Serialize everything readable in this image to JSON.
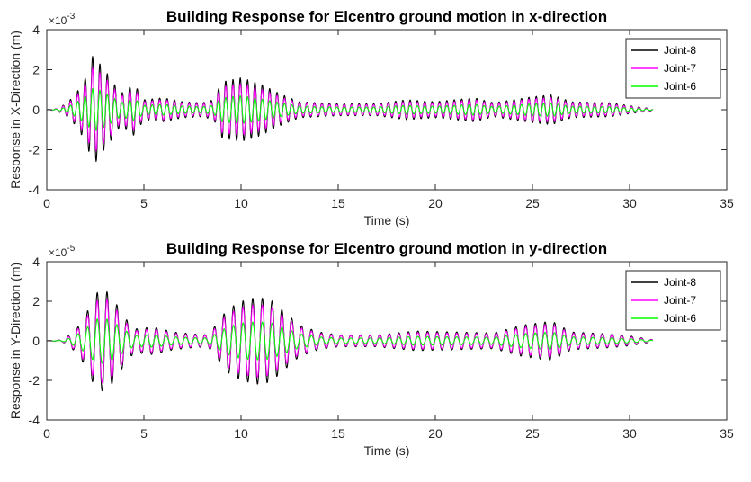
{
  "colors": {
    "joint8": "#000000",
    "joint7": "#ff00ff",
    "joint6": "#00ff00",
    "axis": "#262626",
    "background": "#ffffff"
  },
  "chart_data": [
    {
      "type": "line",
      "title": "Building Response for Elcentro ground motion in x-direction",
      "xlabel": "Time (s)",
      "ylabel": "Response in X-Direction (m)",
      "exponent_label": "×10",
      "exponent_power": "-3",
      "xlim": [
        0,
        35
      ],
      "ylim": [
        -4,
        4
      ],
      "xticks": [
        0,
        5,
        10,
        15,
        20,
        25,
        30,
        35
      ],
      "yticks": [
        -4,
        -2,
        0,
        2,
        4
      ],
      "xtick_labels": [
        "0",
        "5",
        "10",
        "15",
        "20",
        "25",
        "30",
        "35"
      ],
      "ytick_labels": [
        "-4",
        "-2",
        "0",
        "2",
        "4"
      ],
      "grid": false,
      "legend_position": "top-right",
      "line_duration": 31.2,
      "oscillation_period": 0.38,
      "series": [
        {
          "name": "Joint-8",
          "color": "#000000",
          "envelope": [
            [
              0,
              0
            ],
            [
              0.5,
              0.05
            ],
            [
              1,
              0.3
            ],
            [
              1.5,
              0.8
            ],
            [
              2,
              1.6
            ],
            [
              2.4,
              2.8
            ],
            [
              2.8,
              2.2
            ],
            [
              3.2,
              1.7
            ],
            [
              3.8,
              0.8
            ],
            [
              4.5,
              1.3
            ],
            [
              5,
              0.5
            ],
            [
              6,
              0.6
            ],
            [
              7,
              0.4
            ],
            [
              8,
              0.35
            ],
            [
              8.6,
              0.5
            ],
            [
              9,
              1.4
            ],
            [
              10,
              1.6
            ],
            [
              11,
              1.3
            ],
            [
              12,
              0.8
            ],
            [
              13,
              0.4
            ],
            [
              15,
              0.3
            ],
            [
              17,
              0.3
            ],
            [
              18.5,
              0.5
            ],
            [
              20,
              0.4
            ],
            [
              22,
              0.6
            ],
            [
              23,
              0.35
            ],
            [
              25,
              0.65
            ],
            [
              26,
              0.75
            ],
            [
              27,
              0.4
            ],
            [
              29,
              0.35
            ],
            [
              30,
              0.2
            ],
            [
              31.2,
              0.05
            ]
          ]
        },
        {
          "name": "Joint-7",
          "color": "#ff00ff",
          "envelope": [
            [
              0,
              0
            ],
            [
              0.5,
              0.04
            ],
            [
              1,
              0.25
            ],
            [
              1.5,
              0.65
            ],
            [
              2,
              1.3
            ],
            [
              2.4,
              2.2
            ],
            [
              2.8,
              1.8
            ],
            [
              3.2,
              1.4
            ],
            [
              3.8,
              0.65
            ],
            [
              4.5,
              1.05
            ],
            [
              5,
              0.4
            ],
            [
              6,
              0.5
            ],
            [
              7,
              0.32
            ],
            [
              8,
              0.28
            ],
            [
              8.6,
              0.4
            ],
            [
              9,
              1.15
            ],
            [
              10,
              1.3
            ],
            [
              11,
              1.05
            ],
            [
              12,
              0.65
            ],
            [
              13,
              0.32
            ],
            [
              15,
              0.25
            ],
            [
              17,
              0.25
            ],
            [
              18.5,
              0.4
            ],
            [
              20,
              0.32
            ],
            [
              22,
              0.5
            ],
            [
              23,
              0.28
            ],
            [
              25,
              0.55
            ],
            [
              26,
              0.6
            ],
            [
              27,
              0.32
            ],
            [
              29,
              0.28
            ],
            [
              30,
              0.16
            ],
            [
              31.2,
              0.04
            ]
          ]
        },
        {
          "name": "Joint-6",
          "color": "#00ff00",
          "envelope": [
            [
              0,
              0
            ],
            [
              0.5,
              0.02
            ],
            [
              1,
              0.12
            ],
            [
              1.5,
              0.35
            ],
            [
              2,
              0.7
            ],
            [
              2.4,
              1.1
            ],
            [
              2.8,
              0.95
            ],
            [
              3.2,
              0.75
            ],
            [
              3.8,
              0.35
            ],
            [
              4.5,
              0.55
            ],
            [
              5,
              0.22
            ],
            [
              6,
              0.27
            ],
            [
              7,
              0.18
            ],
            [
              8,
              0.15
            ],
            [
              8.6,
              0.22
            ],
            [
              9,
              0.6
            ],
            [
              10,
              0.7
            ],
            [
              11,
              0.55
            ],
            [
              12,
              0.35
            ],
            [
              13,
              0.17
            ],
            [
              15,
              0.13
            ],
            [
              17,
              0.13
            ],
            [
              18.5,
              0.22
            ],
            [
              20,
              0.17
            ],
            [
              22,
              0.27
            ],
            [
              23,
              0.15
            ],
            [
              25,
              0.3
            ],
            [
              26,
              0.33
            ],
            [
              27,
              0.17
            ],
            [
              29,
              0.15
            ],
            [
              30,
              0.08
            ],
            [
              31.2,
              0.02
            ]
          ]
        }
      ]
    },
    {
      "type": "line",
      "title": "Building Response for Elcentro ground motion in y-direction",
      "xlabel": "Time (s)",
      "ylabel": "Response in Y-Direction (m)",
      "exponent_label": "×10",
      "exponent_power": "-5",
      "xlim": [
        0,
        35
      ],
      "ylim": [
        -4,
        4
      ],
      "xticks": [
        0,
        5,
        10,
        15,
        20,
        25,
        30,
        35
      ],
      "yticks": [
        -4,
        -2,
        0,
        2,
        4
      ],
      "xtick_labels": [
        "0",
        "5",
        "10",
        "15",
        "20",
        "25",
        "30",
        "35"
      ],
      "ytick_labels": [
        "-4",
        "-2",
        "0",
        "2",
        "4"
      ],
      "grid": false,
      "legend_position": "top-right",
      "line_duration": 31.2,
      "oscillation_period": 0.5,
      "series": [
        {
          "name": "Joint-8",
          "color": "#000000",
          "envelope": [
            [
              0,
              0
            ],
            [
              0.8,
              0.05
            ],
            [
              1.2,
              0.3
            ],
            [
              1.6,
              0.7
            ],
            [
              2,
              1.3
            ],
            [
              2.5,
              2.4
            ],
            [
              3,
              2.6
            ],
            [
              3.5,
              2.0
            ],
            [
              4,
              1.2
            ],
            [
              4.5,
              0.6
            ],
            [
              5.5,
              0.7
            ],
            [
              6.5,
              0.45
            ],
            [
              7.5,
              0.35
            ],
            [
              8.3,
              0.3
            ],
            [
              8.7,
              0.8
            ],
            [
              9.3,
              1.6
            ],
            [
              10,
              2.0
            ],
            [
              10.8,
              2.2
            ],
            [
              11.5,
              2.1
            ],
            [
              12.2,
              1.5
            ],
            [
              13,
              0.8
            ],
            [
              14,
              0.45
            ],
            [
              15,
              0.3
            ],
            [
              17,
              0.3
            ],
            [
              19,
              0.5
            ],
            [
              21,
              0.45
            ],
            [
              23,
              0.4
            ],
            [
              24.5,
              0.8
            ],
            [
              26,
              1.0
            ],
            [
              27,
              0.45
            ],
            [
              29,
              0.35
            ],
            [
              30,
              0.25
            ],
            [
              31.2,
              0.05
            ]
          ]
        },
        {
          "name": "Joint-7",
          "color": "#ff00ff",
          "envelope": [
            [
              0,
              0
            ],
            [
              0.8,
              0.04
            ],
            [
              1.2,
              0.25
            ],
            [
              1.6,
              0.6
            ],
            [
              2,
              1.1
            ],
            [
              2.5,
              2.0
            ],
            [
              3,
              2.2
            ],
            [
              3.5,
              1.7
            ],
            [
              4,
              1.0
            ],
            [
              4.5,
              0.5
            ],
            [
              5.5,
              0.6
            ],
            [
              6.5,
              0.38
            ],
            [
              7.5,
              0.3
            ],
            [
              8.3,
              0.26
            ],
            [
              8.7,
              0.68
            ],
            [
              9.3,
              1.35
            ],
            [
              10,
              1.7
            ],
            [
              10.8,
              1.85
            ],
            [
              11.5,
              1.75
            ],
            [
              12.2,
              1.25
            ],
            [
              13,
              0.68
            ],
            [
              14,
              0.38
            ],
            [
              15,
              0.26
            ],
            [
              17,
              0.26
            ],
            [
              19,
              0.42
            ],
            [
              21,
              0.38
            ],
            [
              23,
              0.34
            ],
            [
              24.5,
              0.68
            ],
            [
              26,
              0.85
            ],
            [
              27,
              0.38
            ],
            [
              29,
              0.3
            ],
            [
              30,
              0.2
            ],
            [
              31.2,
              0.04
            ]
          ]
        },
        {
          "name": "Joint-6",
          "color": "#00ff00",
          "envelope": [
            [
              0,
              0
            ],
            [
              0.8,
              0.02
            ],
            [
              1.2,
              0.14
            ],
            [
              1.6,
              0.35
            ],
            [
              2,
              0.6
            ],
            [
              2.5,
              1.1
            ],
            [
              3,
              1.15
            ],
            [
              3.5,
              0.9
            ],
            [
              4,
              0.55
            ],
            [
              4.5,
              0.28
            ],
            [
              5.5,
              0.32
            ],
            [
              6.5,
              0.2
            ],
            [
              7.5,
              0.16
            ],
            [
              8.3,
              0.14
            ],
            [
              8.7,
              0.36
            ],
            [
              9.3,
              0.7
            ],
            [
              10,
              0.9
            ],
            [
              10.8,
              0.97
            ],
            [
              11.5,
              0.92
            ],
            [
              12.2,
              0.66
            ],
            [
              13,
              0.36
            ],
            [
              14,
              0.2
            ],
            [
              15,
              0.14
            ],
            [
              17,
              0.14
            ],
            [
              19,
              0.22
            ],
            [
              21,
              0.2
            ],
            [
              23,
              0.18
            ],
            [
              24.5,
              0.36
            ],
            [
              26,
              0.45
            ],
            [
              27,
              0.2
            ],
            [
              29,
              0.16
            ],
            [
              30,
              0.1
            ],
            [
              31.2,
              0.02
            ]
          ]
        }
      ]
    }
  ]
}
